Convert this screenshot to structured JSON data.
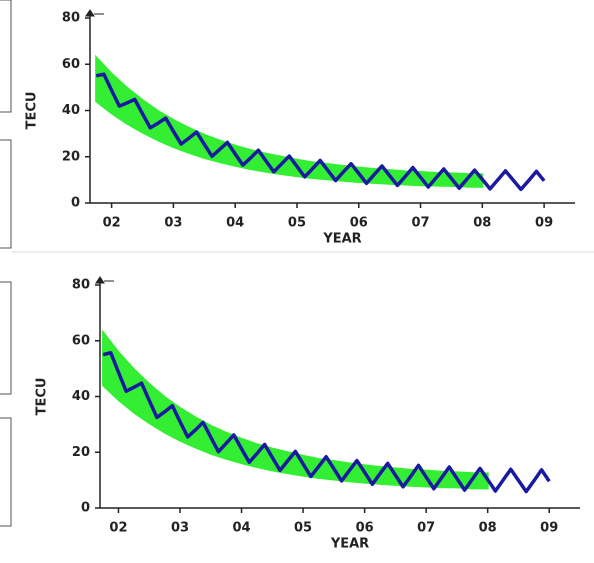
{
  "chart_data": [
    {
      "type": "line",
      "y_label": "TECU",
      "x_label": "YEAR",
      "xlim": [
        2001.65,
        2009.5
      ],
      "ylim": [
        0,
        80
      ],
      "xticks": [
        {
          "value": 2002,
          "label": "02"
        },
        {
          "value": 2003,
          "label": "03"
        },
        {
          "value": 2004,
          "label": "04"
        },
        {
          "value": 2005,
          "label": "05"
        },
        {
          "value": 2006,
          "label": "06"
        },
        {
          "value": 2007,
          "label": "07"
        },
        {
          "value": 2008,
          "label": "08"
        },
        {
          "value": 2009,
          "label": "09"
        }
      ],
      "yticks": [
        0,
        20,
        40,
        60,
        80
      ],
      "band": {
        "color": "#33ee33",
        "x": [
          2001.75,
          2002,
          2002.25,
          2002.5,
          2002.75,
          2003,
          2003.25,
          2003.5,
          2003.75,
          2004,
          2004.25,
          2004.5,
          2004.75,
          2005,
          2005.25,
          2005.5,
          2005.75,
          2006,
          2006.25,
          2006.5,
          2006.75,
          2007,
          2007.25,
          2007.5,
          2007.75,
          2008
        ],
        "low": [
          44,
          38.8,
          34.3,
          30.5,
          27.1,
          24.2,
          21.7,
          19.5,
          17.7,
          16.1,
          14.7,
          13.5,
          12.5,
          11.6,
          10.8,
          10.2,
          9.6,
          9.1,
          8.7,
          8.3,
          8,
          7.7,
          7.5,
          7.4,
          7.1,
          7
        ],
        "high": [
          63,
          55.9,
          49.8,
          44.5,
          39.8,
          35.9,
          32.5,
          29.5,
          27,
          24.8,
          22.9,
          21.3,
          20,
          18.7,
          17.6,
          16.8,
          16,
          15.3,
          14.7,
          14.2,
          13.7,
          13.4,
          13,
          12.8,
          12.5,
          12.4
        ]
      },
      "x": [
        2001.75,
        2001.875,
        2002,
        2002.125,
        2002.25,
        2002.375,
        2002.5,
        2002.625,
        2002.75,
        2002.875,
        2003,
        2003.125,
        2003.25,
        2003.375,
        2003.5,
        2003.625,
        2003.75,
        2003.875,
        2004,
        2004.125,
        2004.25,
        2004.375,
        2004.5,
        2004.625,
        2004.75,
        2004.875,
        2005,
        2005.125,
        2005.25,
        2005.375,
        2005.5,
        2005.625,
        2005.75,
        2005.875,
        2006,
        2006.125,
        2006.25,
        2006.375,
        2006.5,
        2006.625,
        2006.75,
        2006.875,
        2007,
        2007.125,
        2007.25,
        2007.375,
        2007.5,
        2007.625,
        2007.75,
        2007.875,
        2008,
        2008.125,
        2008.25,
        2008.375,
        2008.5,
        2008.625,
        2008.75,
        2008.875,
        2009
      ],
      "series": [
        {
          "color": "#1a1aa0",
          "values": [
            55,
            55.7,
            48.7,
            41.9,
            43.3,
            44.8,
            38.6,
            32.5,
            34.5,
            36.7,
            31,
            25.5,
            28,
            30.7,
            25.4,
            20.2,
            23.2,
            26.2,
            21.2,
            16.4,
            19.5,
            22.8,
            18.1,
            13.5,
            16.9,
            20.3,
            15.8,
            11.3,
            14.8,
            18.4,
            14.1,
            9.7,
            13.4,
            17,
            12.8,
            8.5,
            12.3,
            16,
            11.8,
            7.6,
            11.4,
            15.3,
            11.1,
            6.9,
            10.8,
            14.7,
            10.6,
            6.4,
            10.3,
            14.2,
            10.2,
            6.1,
            10,
            13.9,
            9.9,
            5.9,
            9.7,
            13.7,
            9.6
          ]
        }
      ]
    },
    {
      "type": "line",
      "y_label": "TECU",
      "x_label": "YEAR",
      "xlim": [
        2001.7,
        2009.5
      ],
      "ylim": [
        0,
        80
      ],
      "xticks": [
        {
          "value": 2002,
          "label": "02"
        },
        {
          "value": 2003,
          "label": "03"
        },
        {
          "value": 2004,
          "label": "04"
        },
        {
          "value": 2005,
          "label": "05"
        },
        {
          "value": 2006,
          "label": "06"
        },
        {
          "value": 2007,
          "label": "07"
        },
        {
          "value": 2008,
          "label": "08"
        },
        {
          "value": 2009,
          "label": "09"
        }
      ],
      "yticks": [
        0,
        20,
        40,
        60,
        80
      ],
      "band": {
        "color": "#33ee33",
        "x": [
          2001.75,
          2002,
          2002.25,
          2002.5,
          2002.75,
          2003,
          2003.25,
          2003.5,
          2003.75,
          2004,
          2004.25,
          2004.5,
          2004.75,
          2005,
          2005.25,
          2005.5,
          2005.75,
          2006,
          2006.25,
          2006.5,
          2006.75,
          2007,
          2007.25,
          2007.5,
          2007.75,
          2008
        ],
        "low": [
          44,
          38.8,
          34.3,
          30.5,
          27.1,
          24.2,
          21.7,
          19.5,
          17.7,
          16.1,
          14.7,
          13.5,
          12.5,
          11.6,
          10.8,
          10.2,
          9.6,
          9.1,
          8.7,
          8.3,
          8,
          7.7,
          7.5,
          7.4,
          7.1,
          7
        ],
        "high": [
          63,
          55.9,
          49.8,
          44.5,
          39.8,
          35.9,
          32.5,
          29.5,
          27,
          24.8,
          22.9,
          21.3,
          20,
          18.7,
          17.6,
          16.8,
          16,
          15.3,
          14.7,
          14.2,
          13.7,
          13.4,
          13,
          12.8,
          12.5,
          12.4
        ]
      },
      "x": [
        2001.75,
        2001.875,
        2002,
        2002.125,
        2002.25,
        2002.375,
        2002.5,
        2002.625,
        2002.75,
        2002.875,
        2003,
        2003.125,
        2003.25,
        2003.375,
        2003.5,
        2003.625,
        2003.75,
        2003.875,
        2004,
        2004.125,
        2004.25,
        2004.375,
        2004.5,
        2004.625,
        2004.75,
        2004.875,
        2005,
        2005.125,
        2005.25,
        2005.375,
        2005.5,
        2005.625,
        2005.75,
        2005.875,
        2006,
        2006.125,
        2006.25,
        2006.375,
        2006.5,
        2006.625,
        2006.75,
        2006.875,
        2007,
        2007.125,
        2007.25,
        2007.375,
        2007.5,
        2007.625,
        2007.75,
        2007.875,
        2008,
        2008.125,
        2008.25,
        2008.375,
        2008.5,
        2008.625,
        2008.75,
        2008.875,
        2009
      ],
      "series": [
        {
          "color": "#1a1aa0",
          "values": [
            55,
            55.7,
            48.7,
            41.9,
            43.3,
            44.8,
            38.6,
            32.5,
            34.5,
            36.7,
            31,
            25.5,
            28,
            30.7,
            25.4,
            20.2,
            23.2,
            26.2,
            21.2,
            16.4,
            19.5,
            22.8,
            18.1,
            13.5,
            16.9,
            20.3,
            15.8,
            11.3,
            14.8,
            18.4,
            14.1,
            9.7,
            13.4,
            17,
            12.8,
            8.5,
            12.3,
            16,
            11.8,
            7.6,
            11.4,
            15.3,
            11.1,
            6.9,
            10.8,
            14.7,
            10.6,
            6.4,
            10.3,
            14.2,
            10.2,
            6.1,
            10,
            13.9,
            9.9,
            5.9,
            9.7,
            13.7,
            9.6
          ]
        }
      ]
    }
  ]
}
